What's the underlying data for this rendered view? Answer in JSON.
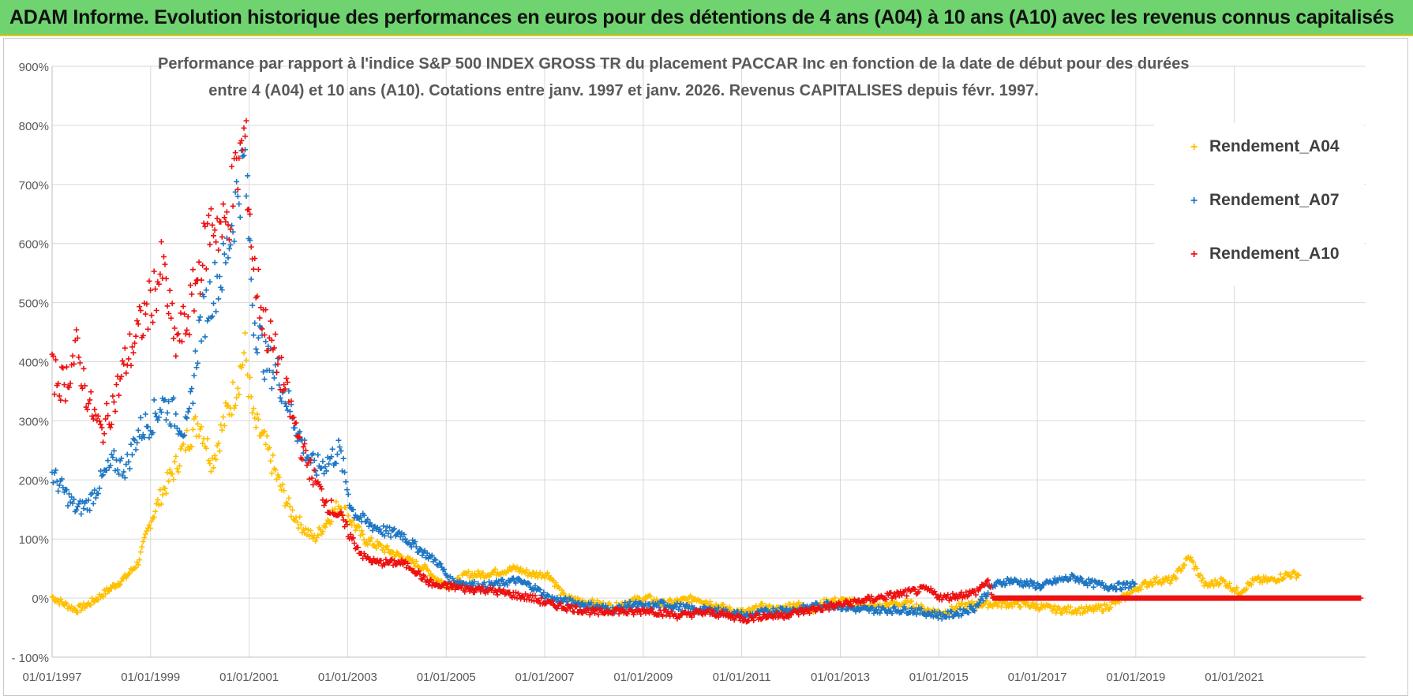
{
  "banner": {
    "title": "ADAM Informe. Evolution historique des performances en euros pour des détentions de 4 ans (A04) à 10 ans (A10) avec les revenus connus capitalisés"
  },
  "colors": {
    "banner_bg": "#6fd36f",
    "banner_border": "#f2c200",
    "A04": "#ffc000",
    "A07": "#1f77c4",
    "A10": "#ee1111"
  },
  "chart_data": {
    "type": "scatter",
    "title_line1": "Performance par rapport à l'indice S&P 500 INDEX GROSS TR  du placement PACCAR Inc en fonction de la date de début pour des durées",
    "title_line2": "entre 4 (A04) et 10 ans (A10).  Cotations entre janv. 1997 et janv. 2026. Revenus CAPITALISES depuis févr. 1997.",
    "xlabel": "",
    "ylabel": "",
    "x_type": "date",
    "xlim": [
      "1997-01-01",
      "2023-09-01"
    ],
    "ylim": [
      -100,
      900
    ],
    "y_unit": "%",
    "grid": true,
    "legend_position": "top-right",
    "x_tick_labels": [
      "01/01/1997",
      "01/01/1999",
      "01/01/2001",
      "01/01/2003",
      "01/01/2005",
      "01/01/2007",
      "01/01/2009",
      "01/01/2011",
      "01/01/2013",
      "01/01/2015",
      "01/01/2017",
      "01/01/2019",
      "01/01/2021"
    ],
    "x_tick_dates": [
      "1997-01-01",
      "1999-01-01",
      "2001-01-01",
      "2003-01-01",
      "2005-01-01",
      "2007-01-01",
      "2009-01-01",
      "2011-01-01",
      "2013-01-01",
      "2015-01-01",
      "2017-01-01",
      "2019-01-01",
      "2021-01-01"
    ],
    "y_ticks": [
      -100,
      0,
      100,
      200,
      300,
      400,
      500,
      600,
      700,
      800,
      900
    ],
    "y_tick_labels": [
      "- 100%",
      "0%",
      "100%",
      "200%",
      "300%",
      "400%",
      "500%",
      "600%",
      "700%",
      "800%",
      "900%"
    ],
    "series": [
      {
        "name": "Rendement_A04",
        "marker": "+",
        "x": [
          "1997-01-01",
          "1997-04-01",
          "1997-07-01",
          "1997-10-01",
          "1998-01-01",
          "1998-04-01",
          "1998-07-01",
          "1998-10-01",
          "1999-01-01",
          "1999-04-01",
          "1999-07-01",
          "1999-10-01",
          "2000-01-01",
          "2000-04-01",
          "2000-07-01",
          "2000-10-01",
          "2000-12-01",
          "2001-02-01",
          "2001-05-01",
          "2001-08-01",
          "2001-11-01",
          "2002-02-01",
          "2002-05-01",
          "2002-08-01",
          "2002-11-01",
          "2003-02-01",
          "2003-05-01",
          "2003-08-01",
          "2003-11-01",
          "2004-02-01",
          "2004-05-01",
          "2004-08-01",
          "2004-11-01",
          "2005-02-01",
          "2005-06-01",
          "2005-10-01",
          "2006-02-01",
          "2006-06-01",
          "2006-10-01",
          "2007-02-01",
          "2007-06-01",
          "2007-10-01",
          "2008-02-01",
          "2008-06-01",
          "2008-10-01",
          "2009-02-01",
          "2009-06-01",
          "2009-10-01",
          "2010-02-01",
          "2010-06-01",
          "2010-10-01",
          "2011-02-01",
          "2011-06-01",
          "2011-10-01",
          "2012-02-01",
          "2012-06-01",
          "2012-10-01",
          "2013-02-01",
          "2013-06-01",
          "2013-10-01",
          "2014-02-01",
          "2014-06-01",
          "2014-10-01",
          "2015-02-01",
          "2015-06-01",
          "2015-10-01",
          "2016-02-01",
          "2016-06-01",
          "2016-10-01",
          "2017-02-01",
          "2017-06-01",
          "2017-10-01",
          "2018-02-01",
          "2018-06-01",
          "2018-10-01",
          "2019-02-01",
          "2019-06-01",
          "2019-10-01",
          "2020-02-01",
          "2020-06-01",
          "2020-10-01",
          "2021-02-01",
          "2021-06-01",
          "2021-10-01",
          "2022-02-01",
          "2022-05-01"
        ],
        "y": [
          2,
          -10,
          -20,
          -10,
          5,
          20,
          35,
          60,
          130,
          180,
          220,
          270,
          300,
          230,
          300,
          360,
          420,
          300,
          260,
          200,
          150,
          120,
          100,
          130,
          160,
          130,
          100,
          90,
          80,
          70,
          60,
          50,
          30,
          20,
          40,
          40,
          45,
          50,
          40,
          40,
          0,
          -5,
          -10,
          -15,
          -5,
          0,
          -10,
          -5,
          0,
          -10,
          -20,
          -25,
          -15,
          -20,
          -10,
          -20,
          -5,
          -5,
          -10,
          -15,
          -10,
          -10,
          -20,
          -25,
          -15,
          -10,
          -10,
          -10,
          -10,
          -15,
          -20,
          -20,
          -20,
          -15,
          0,
          20,
          30,
          30,
          70,
          20,
          30,
          10,
          30,
          30,
          40,
          40
        ]
      },
      {
        "name": "Rendement_A07",
        "marker": "+",
        "x": [
          "1997-01-01",
          "1997-04-01",
          "1997-07-01",
          "1997-10-01",
          "1998-01-01",
          "1998-04-01",
          "1998-07-01",
          "1998-10-01",
          "1999-01-01",
          "1999-04-01",
          "1999-07-01",
          "1999-10-01",
          "2000-01-01",
          "2000-04-01",
          "2000-07-01",
          "2000-10-01",
          "2000-12-01",
          "2001-02-01",
          "2001-05-01",
          "2001-08-01",
          "2001-11-01",
          "2002-02-01",
          "2002-05-01",
          "2002-08-01",
          "2002-11-01",
          "2003-02-01",
          "2003-05-01",
          "2003-08-01",
          "2003-11-01",
          "2004-02-01",
          "2004-05-01",
          "2004-08-01",
          "2004-11-01",
          "2005-02-01",
          "2005-06-01",
          "2005-10-01",
          "2006-02-01",
          "2006-06-01",
          "2006-10-01",
          "2007-02-01",
          "2007-06-01",
          "2007-10-01",
          "2008-02-01",
          "2008-06-01",
          "2008-10-01",
          "2009-02-01",
          "2009-06-01",
          "2009-10-01",
          "2010-02-01",
          "2010-06-01",
          "2010-10-01",
          "2011-02-01",
          "2011-06-01",
          "2011-10-01",
          "2012-02-01",
          "2012-06-01",
          "2012-10-01",
          "2013-02-01",
          "2013-06-01",
          "2013-10-01",
          "2014-02-01",
          "2014-06-01",
          "2014-10-01",
          "2015-02-01",
          "2015-06-01",
          "2015-10-01",
          "2016-02-01",
          "2016-06-01",
          "2016-10-01",
          "2017-02-01",
          "2017-06-01",
          "2017-10-01",
          "2018-02-01",
          "2018-06-01",
          "2018-10-01",
          "2019-01-01"
        ],
        "y": [
          210,
          180,
          150,
          160,
          200,
          230,
          220,
          280,
          300,
          330,
          310,
          280,
          460,
          520,
          560,
          680,
          740,
          480,
          400,
          380,
          320,
          260,
          220,
          230,
          250,
          150,
          130,
          120,
          110,
          110,
          90,
          75,
          60,
          30,
          25,
          20,
          25,
          30,
          20,
          0,
          -5,
          -10,
          -15,
          -20,
          -10,
          -15,
          -10,
          -15,
          -20,
          -20,
          -25,
          -30,
          -25,
          -20,
          -20,
          -15,
          -10,
          -15,
          -20,
          -20,
          -20,
          -20,
          -25,
          -30,
          -25,
          -15,
          20,
          30,
          25,
          20,
          30,
          35,
          25,
          20,
          20,
          25
        ]
      },
      {
        "name": "Rendement_A10",
        "marker": "+",
        "x": [
          "1997-01-01",
          "1997-04-01",
          "1997-07-01",
          "1997-10-01",
          "1998-01-01",
          "1998-04-01",
          "1998-07-01",
          "1998-10-01",
          "1999-01-01",
          "1999-04-01",
          "1999-07-01",
          "1999-10-01",
          "2000-01-01",
          "2000-04-01",
          "2000-07-01",
          "2000-10-01",
          "2000-12-01",
          "2001-02-01",
          "2001-05-01",
          "2001-08-01",
          "2001-11-01",
          "2002-02-01",
          "2002-05-01",
          "2002-08-01",
          "2002-11-01",
          "2003-02-01",
          "2003-05-01",
          "2003-08-01",
          "2003-11-01",
          "2004-02-01",
          "2004-05-01",
          "2004-08-01",
          "2004-11-01",
          "2005-02-01",
          "2005-06-01",
          "2005-10-01",
          "2006-02-01",
          "2006-06-01",
          "2006-10-01",
          "2007-02-01",
          "2007-06-01",
          "2007-10-01",
          "2008-02-01",
          "2008-06-01",
          "2008-10-01",
          "2009-02-01",
          "2009-06-01",
          "2009-10-01",
          "2010-02-01",
          "2010-06-01",
          "2010-10-01",
          "2011-02-01",
          "2011-06-01",
          "2011-10-01",
          "2012-02-01",
          "2012-06-01",
          "2012-10-01",
          "2013-02-01",
          "2013-06-01",
          "2013-10-01",
          "2014-02-01",
          "2014-06-01",
          "2014-10-01",
          "2015-02-01",
          "2015-06-01",
          "2015-10-01",
          "2016-01-01",
          "2016-02-01",
          "2017-01-01",
          "2018-01-01",
          "2019-01-01",
          "2020-01-01",
          "2021-01-01",
          "2022-01-01",
          "2023-01-01",
          "2023-08-01"
        ],
        "y": [
          380,
          360,
          420,
          330,
          280,
          330,
          400,
          450,
          500,
          560,
          430,
          470,
          560,
          640,
          620,
          720,
          780,
          560,
          460,
          400,
          320,
          250,
          200,
          160,
          140,
          100,
          70,
          60,
          60,
          60,
          50,
          30,
          20,
          20,
          15,
          15,
          10,
          5,
          0,
          -10,
          -15,
          -20,
          -25,
          -20,
          -25,
          -20,
          -25,
          -30,
          -25,
          -25,
          -30,
          -35,
          -30,
          -30,
          -25,
          -20,
          -15,
          -10,
          -5,
          0,
          5,
          10,
          15,
          0,
          5,
          10,
          30,
          0,
          0,
          0,
          0,
          0,
          0,
          0,
          0,
          0
        ]
      }
    ]
  }
}
